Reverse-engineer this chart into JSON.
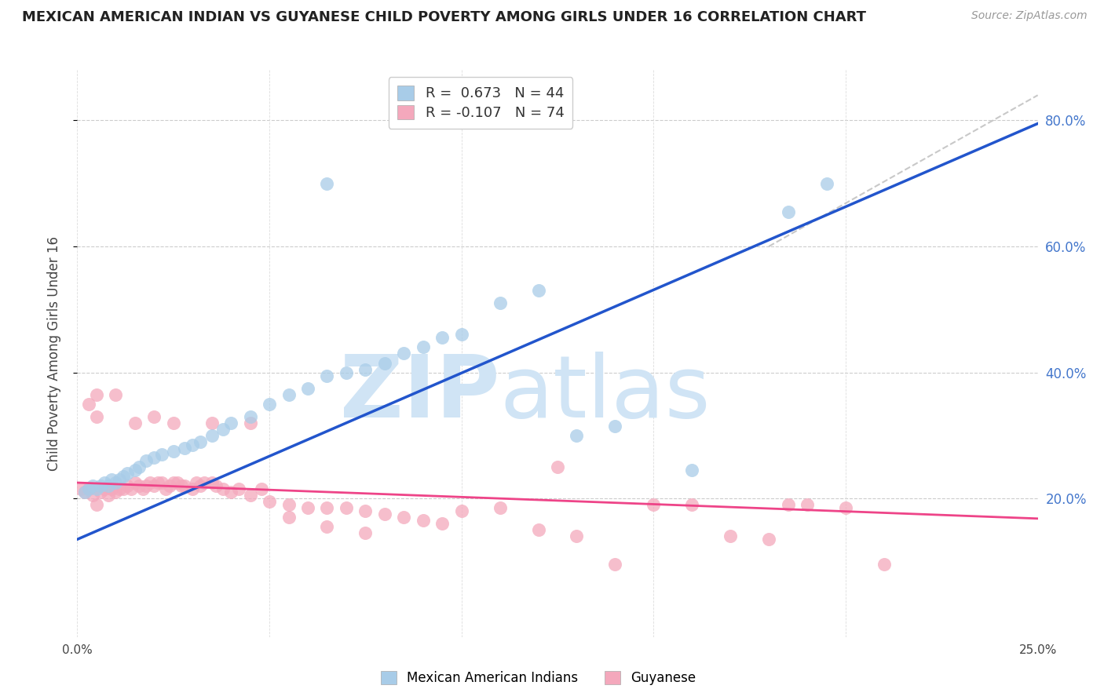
{
  "title": "MEXICAN AMERICAN INDIAN VS GUYANESE CHILD POVERTY AMONG GIRLS UNDER 16 CORRELATION CHART",
  "source": "Source: ZipAtlas.com",
  "ylabel": "Child Poverty Among Girls Under 16",
  "series1_label": "Mexican American Indians",
  "series2_label": "Guyanese",
  "R1": 0.673,
  "N1": 44,
  "R2": -0.107,
  "N2": 74,
  "color1": "#a8cce8",
  "color2": "#f4a8bc",
  "trendline1_color": "#2255cc",
  "trendline2_color": "#ee4488",
  "refline_color": "#bbbbbb",
  "xlim": [
    0.0,
    0.25
  ],
  "ylim": [
    -0.02,
    0.88
  ],
  "yticks_right": [
    0.2,
    0.4,
    0.6,
    0.8
  ],
  "ytick_labels_right": [
    "20.0%",
    "40.0%",
    "60.0%",
    "80.0%"
  ],
  "xticks": [
    0.0,
    0.05,
    0.1,
    0.15,
    0.2,
    0.25
  ],
  "xtick_labels": [
    "0.0%",
    "",
    "",
    "",
    "",
    "25.0%"
  ],
  "background_color": "#ffffff",
  "watermark_zip": "ZIP",
  "watermark_atlas": "atlas",
  "watermark_color": "#d0e4f5",
  "trendline1_x0": 0.0,
  "trendline1_y0": 0.135,
  "trendline1_x1": 0.25,
  "trendline1_y1": 0.795,
  "trendline2_x0": 0.0,
  "trendline2_y0": 0.225,
  "trendline2_x1": 0.25,
  "trendline2_y1": 0.168,
  "refline_x0": 0.18,
  "refline_y0": 0.6,
  "refline_x1": 0.25,
  "refline_y1": 0.84,
  "series1_x": [
    0.002,
    0.003,
    0.004,
    0.005,
    0.006,
    0.007,
    0.008,
    0.009,
    0.01,
    0.011,
    0.012,
    0.013,
    0.015,
    0.016,
    0.018,
    0.02,
    0.022,
    0.025,
    0.028,
    0.03,
    0.032,
    0.035,
    0.038,
    0.04,
    0.045,
    0.05,
    0.055,
    0.06,
    0.065,
    0.07,
    0.075,
    0.08,
    0.085,
    0.09,
    0.095,
    0.1,
    0.11,
    0.12,
    0.065,
    0.13,
    0.14,
    0.16,
    0.185,
    0.195
  ],
  "series1_y": [
    0.21,
    0.215,
    0.22,
    0.215,
    0.22,
    0.225,
    0.22,
    0.23,
    0.225,
    0.23,
    0.235,
    0.24,
    0.245,
    0.25,
    0.26,
    0.265,
    0.27,
    0.275,
    0.28,
    0.285,
    0.29,
    0.3,
    0.31,
    0.32,
    0.33,
    0.35,
    0.365,
    0.375,
    0.395,
    0.4,
    0.405,
    0.415,
    0.43,
    0.44,
    0.455,
    0.46,
    0.51,
    0.53,
    0.7,
    0.3,
    0.315,
    0.245,
    0.655,
    0.7
  ],
  "series2_x": [
    0.001,
    0.002,
    0.003,
    0.004,
    0.005,
    0.006,
    0.007,
    0.008,
    0.009,
    0.01,
    0.011,
    0.012,
    0.013,
    0.014,
    0.015,
    0.016,
    0.017,
    0.018,
    0.019,
    0.02,
    0.021,
    0.022,
    0.023,
    0.024,
    0.025,
    0.026,
    0.027,
    0.028,
    0.03,
    0.031,
    0.032,
    0.033,
    0.035,
    0.036,
    0.038,
    0.04,
    0.042,
    0.045,
    0.048,
    0.05,
    0.055,
    0.06,
    0.065,
    0.07,
    0.075,
    0.08,
    0.085,
    0.09,
    0.095,
    0.1,
    0.11,
    0.12,
    0.13,
    0.14,
    0.15,
    0.16,
    0.17,
    0.18,
    0.19,
    0.2,
    0.21,
    0.003,
    0.005,
    0.015,
    0.025,
    0.035,
    0.045,
    0.055,
    0.065,
    0.075,
    0.125,
    0.185,
    0.005,
    0.01,
    0.02
  ],
  "series2_y": [
    0.215,
    0.21,
    0.215,
    0.205,
    0.19,
    0.21,
    0.215,
    0.205,
    0.215,
    0.21,
    0.215,
    0.215,
    0.22,
    0.215,
    0.225,
    0.22,
    0.215,
    0.22,
    0.225,
    0.22,
    0.225,
    0.225,
    0.215,
    0.22,
    0.225,
    0.225,
    0.22,
    0.22,
    0.215,
    0.225,
    0.22,
    0.225,
    0.225,
    0.22,
    0.215,
    0.21,
    0.215,
    0.205,
    0.215,
    0.195,
    0.19,
    0.185,
    0.185,
    0.185,
    0.18,
    0.175,
    0.17,
    0.165,
    0.16,
    0.18,
    0.185,
    0.15,
    0.14,
    0.095,
    0.19,
    0.19,
    0.14,
    0.135,
    0.19,
    0.185,
    0.095,
    0.35,
    0.33,
    0.32,
    0.32,
    0.32,
    0.32,
    0.17,
    0.155,
    0.145,
    0.25,
    0.19,
    0.365,
    0.365,
    0.33
  ]
}
